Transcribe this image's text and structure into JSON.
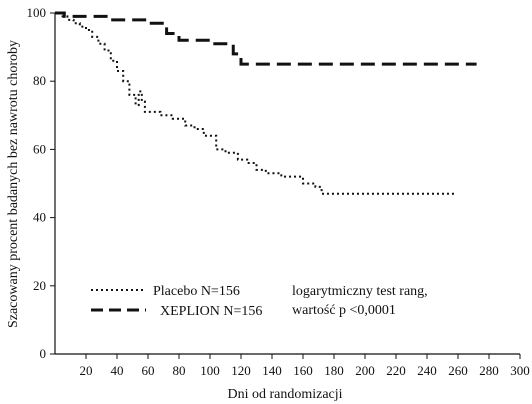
{
  "chart_data": {
    "type": "line",
    "xlabel": "Dni od randomizacji",
    "ylabel": "Szacowany procent badanych bez nawrotu choroby",
    "xlim": [
      0,
      300
    ],
    "ylim": [
      0,
      100
    ],
    "xticks": [
      20,
      40,
      60,
      80,
      100,
      120,
      140,
      160,
      180,
      200,
      220,
      240,
      260,
      280,
      300
    ],
    "yticks": [
      0,
      20,
      40,
      60,
      80,
      100
    ],
    "grid": false,
    "legend_position": "bottom-left",
    "step": true,
    "series": [
      {
        "name": "Placebo N=156",
        "line_style": "dotted",
        "color": "#111111",
        "x": [
          0,
          4,
          8,
          12,
          16,
          20,
          24,
          28,
          32,
          36,
          40,
          44,
          48,
          52,
          54,
          56,
          58,
          62,
          68,
          76,
          84,
          90,
          96,
          104,
          110,
          118,
          124,
          130,
          136,
          146,
          160,
          168,
          172,
          258
        ],
        "y": [
          100,
          99,
          98,
          97,
          96,
          95,
          93,
          91,
          89,
          86,
          83,
          80,
          76,
          73,
          77,
          74,
          71,
          71,
          70,
          69,
          67,
          66,
          64,
          60,
          59,
          57,
          56,
          54,
          53,
          52,
          50,
          49,
          47,
          47
        ]
      },
      {
        "name": "XEPLION N=156",
        "line_style": "dashed",
        "color": "#111111",
        "x": [
          0,
          6,
          35,
          60,
          72,
          80,
          100,
          115,
          120,
          272
        ],
        "y": [
          100,
          99,
          98,
          97,
          94,
          92,
          91,
          88,
          85,
          85
        ]
      }
    ],
    "annotations": [
      "logarytmiczny test rang,",
      "wartość p <0,0001"
    ]
  }
}
